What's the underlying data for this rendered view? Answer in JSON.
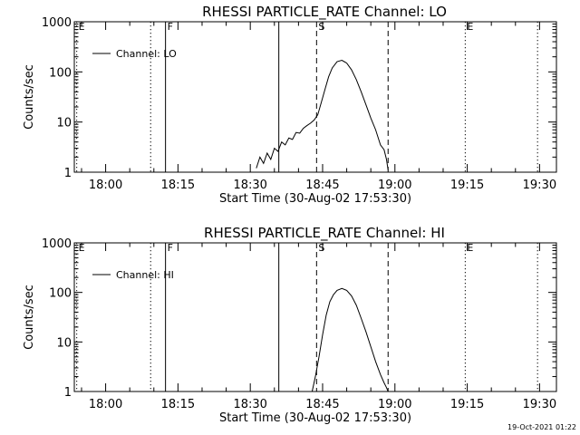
{
  "footer": {
    "timestamp": "19-Oct-2021 01:22"
  },
  "chart_data": [
    {
      "type": "line",
      "title": "RHESSI PARTICLE_RATE Channel: LO",
      "xlabel": "Start Time (30-Aug-02 17:53:30)",
      "ylabel": "Counts/sec",
      "y_scale": "log",
      "ylim": [
        1,
        1000
      ],
      "xlim": [
        "17:53:30",
        "19:33:30"
      ],
      "x_ticks": [
        "18:00",
        "18:15",
        "18:30",
        "18:45",
        "19:00",
        "19:15",
        "19:30"
      ],
      "y_ticks": [
        "1",
        "10",
        "100",
        "1000"
      ],
      "legend": {
        "placement": "top-left",
        "entries": [
          "Channel: LO"
        ]
      },
      "markers": [
        {
          "label": "E",
          "time": "17:54:00",
          "style": "dotted"
        },
        {
          "label": "",
          "time": "18:09:20",
          "style": "dotted"
        },
        {
          "label": "F",
          "time": "18:12:25",
          "style": "solid"
        },
        {
          "label": "",
          "time": "18:35:55",
          "style": "solid"
        },
        {
          "label": "S",
          "time": "18:43:45",
          "style": "dashed"
        },
        {
          "label": "",
          "time": "18:58:35",
          "style": "dashed"
        },
        {
          "label": "E",
          "time": "19:14:35",
          "style": "dotted"
        },
        {
          "label": "",
          "time": "19:29:35",
          "style": "dotted"
        }
      ],
      "series": [
        {
          "x": [
            "18:31:15",
            "18:32:00",
            "18:32:45",
            "18:33:30",
            "18:34:15",
            "18:35:00",
            "18:35:45",
            "18:36:30",
            "18:37:15",
            "18:38:00",
            "18:38:45",
            "18:39:30",
            "18:40:15",
            "18:41:00",
            "18:41:45",
            "18:42:30",
            "18:43:15",
            "18:44:00",
            "18:44:45",
            "18:45:30",
            "18:46:15",
            "18:47:00",
            "18:48:00",
            "18:49:00",
            "18:50:00",
            "18:51:00",
            "18:52:00",
            "18:53:00",
            "18:54:00",
            "18:55:00",
            "18:56:00",
            "18:57:00",
            "18:57:45",
            "18:58:15",
            "18:58:35"
          ],
          "y": [
            1.2,
            2.0,
            1.5,
            2.4,
            1.8,
            3.0,
            2.6,
            4.0,
            3.5,
            4.8,
            4.5,
            6.2,
            6.0,
            7.5,
            8.5,
            9.5,
            11,
            14,
            25,
            45,
            80,
            120,
            160,
            170,
            150,
            110,
            70,
            40,
            22,
            12,
            7,
            3.5,
            2.8,
            1.8,
            1.1
          ]
        }
      ]
    },
    {
      "type": "line",
      "title": "RHESSI PARTICLE_RATE Channel: HI",
      "xlabel": "Start Time (30-Aug-02 17:53:30)",
      "ylabel": "Counts/sec",
      "y_scale": "log",
      "ylim": [
        1,
        1000
      ],
      "xlim": [
        "17:53:30",
        "19:33:30"
      ],
      "x_ticks": [
        "18:00",
        "18:15",
        "18:30",
        "18:45",
        "19:00",
        "19:15",
        "19:30"
      ],
      "y_ticks": [
        "1",
        "10",
        "100",
        "1000"
      ],
      "legend": {
        "placement": "top-left",
        "entries": [
          "Channel: HI"
        ]
      },
      "markers": [
        {
          "label": "E",
          "time": "17:54:00",
          "style": "dotted"
        },
        {
          "label": "",
          "time": "18:09:20",
          "style": "dotted"
        },
        {
          "label": "F",
          "time": "18:12:25",
          "style": "solid"
        },
        {
          "label": "",
          "time": "18:35:55",
          "style": "solid"
        },
        {
          "label": "S",
          "time": "18:43:45",
          "style": "dashed"
        },
        {
          "label": "",
          "time": "18:58:35",
          "style": "dashed"
        },
        {
          "label": "E",
          "time": "19:14:35",
          "style": "dotted"
        },
        {
          "label": "",
          "time": "19:29:35",
          "style": "dotted"
        }
      ],
      "series": [
        {
          "x": [
            "18:42:50",
            "18:43:30",
            "18:44:15",
            "18:45:00",
            "18:45:45",
            "18:46:30",
            "18:47:15",
            "18:48:00",
            "18:49:00",
            "18:50:00",
            "18:51:00",
            "18:52:00",
            "18:53:00",
            "18:54:00",
            "18:55:00",
            "18:56:00",
            "18:57:00",
            "18:57:45",
            "18:58:15",
            "18:58:35"
          ],
          "y": [
            1.0,
            2.0,
            5.0,
            14,
            35,
            65,
            90,
            110,
            120,
            110,
            85,
            55,
            30,
            16,
            8,
            4,
            2.2,
            1.5,
            1.2,
            1.0
          ]
        }
      ]
    }
  ]
}
